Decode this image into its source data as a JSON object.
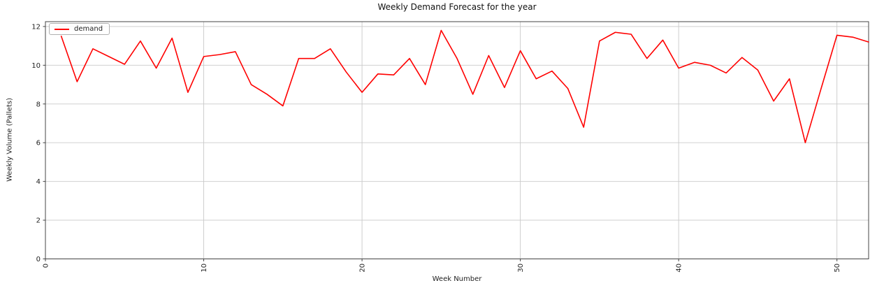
{
  "chart": {
    "title": "Weekly Demand Forecast for the year",
    "xlabel": "Week Number",
    "ylabel": "Weekly Volume (Pallets)",
    "legend_label": "demand"
  },
  "chart_data": {
    "type": "line",
    "title": "Weekly Demand Forecast for the year",
    "xlabel": "Week Number",
    "ylabel": "Weekly Volume (Pallets)",
    "legend": [
      "demand"
    ],
    "legend_position": "upper left",
    "grid": true,
    "line_color": "#ff0000",
    "grid_color": "#c9c9c9",
    "spine_color": "#444444",
    "text_color": "#222222",
    "xlim": [
      0,
      52
    ],
    "ylim": [
      0,
      12.25
    ],
    "xticks": [
      0,
      10,
      20,
      30,
      40,
      50
    ],
    "yticks": [
      0,
      2,
      4,
      6,
      8,
      10,
      12
    ],
    "xtick_rotation": 90,
    "series": [
      {
        "name": "demand",
        "x": [
          1,
          2,
          3,
          4,
          5,
          6,
          7,
          8,
          9,
          10,
          11,
          12,
          13,
          14,
          15,
          16,
          17,
          18,
          19,
          20,
          21,
          22,
          23,
          24,
          25,
          26,
          27,
          28,
          29,
          30,
          31,
          32,
          33,
          34,
          35,
          36,
          37,
          38,
          39,
          40,
          41,
          42,
          43,
          44,
          45,
          46,
          47,
          48,
          49,
          50,
          51,
          52
        ],
        "y": [
          11.5,
          9.15,
          10.85,
          10.45,
          10.05,
          11.25,
          9.85,
          11.4,
          8.6,
          10.45,
          10.55,
          10.7,
          9.0,
          8.5,
          7.9,
          10.35,
          10.35,
          10.85,
          9.65,
          8.6,
          9.55,
          9.5,
          10.35,
          9.0,
          11.8,
          10.35,
          8.5,
          10.5,
          8.85,
          10.75,
          9.3,
          9.7,
          8.8,
          6.8,
          11.25,
          11.7,
          11.6,
          10.35,
          11.3,
          9.85,
          10.15,
          10.0,
          9.6,
          10.4,
          9.75,
          8.15,
          9.3,
          6.0,
          8.8,
          11.55,
          11.45,
          11.2
        ]
      }
    ]
  }
}
